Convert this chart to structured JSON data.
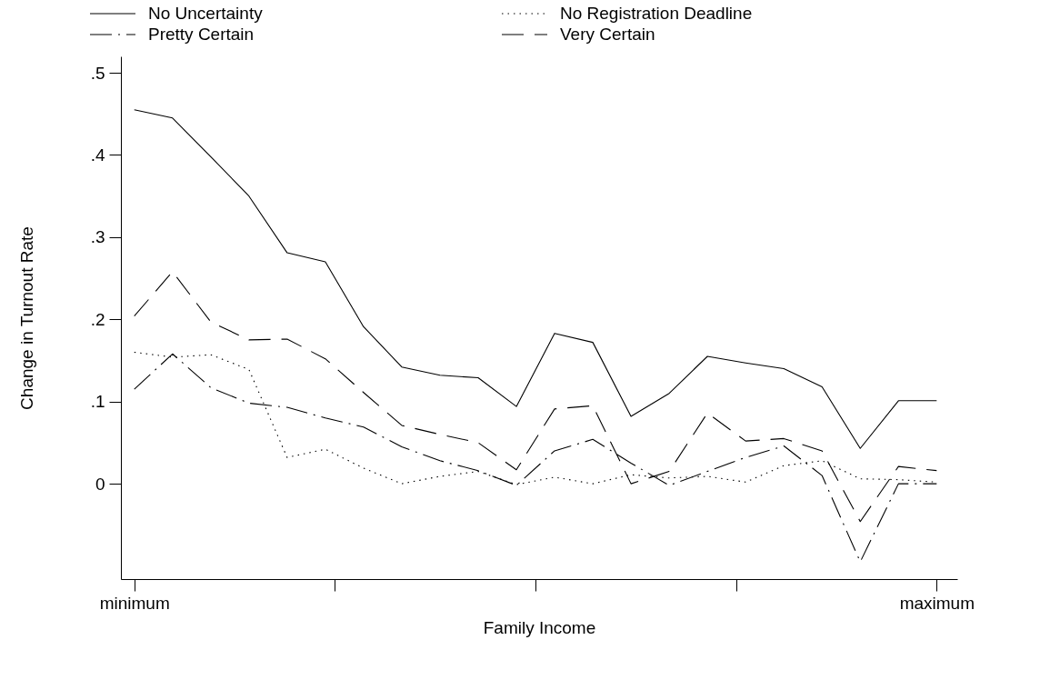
{
  "chart_data": {
    "type": "line",
    "xlabel": "Family Income",
    "ylabel": "Change in Turnout Rate",
    "categories": [
      "minimum",
      null,
      null,
      null,
      null,
      null,
      null,
      null,
      null,
      null,
      null,
      null,
      null,
      null,
      null,
      null,
      null,
      null,
      null,
      null,
      null,
      "maximum"
    ],
    "ylim": [
      -0.116,
      0.52
    ],
    "yticks": [
      0,
      {
        "value": 0.1,
        "label": ".1"
      },
      {
        "value": 0.2,
        "label": ".2"
      },
      {
        "value": 0.3,
        "label": ".3"
      },
      {
        "value": 0.4,
        "label": ".4"
      },
      {
        "value": 0.5,
        "label": ".5"
      }
    ],
    "grid": false,
    "legend": "top",
    "series": [
      {
        "name": "No Uncertainty",
        "color": "#000000",
        "line_style": "solid",
        "values": [
          0.455,
          0.445,
          0.398,
          0.35,
          0.281,
          0.27,
          0.191,
          0.142,
          0.132,
          0.129,
          0.094,
          0.183,
          0.172,
          0.082,
          0.11,
          0.155,
          0.147,
          0.14,
          0.118,
          0.043,
          0.101,
          0.101
        ]
      },
      {
        "name": "No Registration Deadline",
        "color": "#000000",
        "line_style": "dotted",
        "values": [
          0.16,
          0.154,
          0.157,
          0.139,
          0.032,
          0.042,
          0.019,
          0.0,
          0.009,
          0.015,
          -0.001,
          0.008,
          0.0,
          0.011,
          0.007,
          0.009,
          0.002,
          0.022,
          0.028,
          0.006,
          0.005,
          0.002
        ]
      },
      {
        "name": "Pretty Certain",
        "color": "#000000",
        "line_style": "dashdot",
        "values": [
          0.115,
          0.158,
          0.117,
          0.098,
          0.093,
          0.08,
          0.069,
          0.045,
          0.028,
          0.016,
          -0.002,
          0.04,
          0.054,
          0.025,
          -0.002,
          0.015,
          0.032,
          0.046,
          0.01,
          -0.095,
          0.0,
          0.0
        ]
      },
      {
        "name": "Very Certain",
        "color": "#000000",
        "line_style": "dashed",
        "values": [
          0.204,
          0.258,
          0.197,
          0.175,
          0.176,
          0.152,
          0.111,
          0.071,
          0.06,
          0.05,
          0.017,
          0.091,
          0.095,
          0.0,
          0.015,
          0.086,
          0.052,
          0.055,
          0.04,
          -0.046,
          0.021,
          0.016
        ]
      }
    ]
  }
}
